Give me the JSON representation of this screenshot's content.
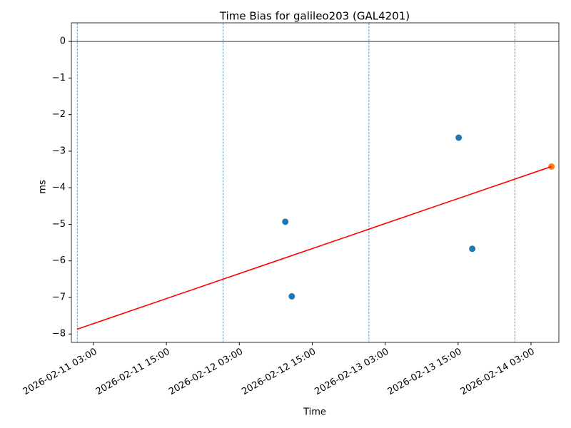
{
  "chart_data": {
    "type": "scatter",
    "title": "Time Bias for galileo203 (GAL4201)",
    "x_label": "Time",
    "y_label": "ms",
    "series": [
      {
        "type": "scatter",
        "color": "#1f77b4",
        "x": [
          "2026-02-12 10:34",
          "2026-02-12 11:38",
          "2026-02-13 15:06",
          "2026-02-13 17:20"
        ],
        "values": [
          -4.93,
          -6.97,
          -2.63,
          -5.67
        ]
      },
      {
        "type": "scatter",
        "color": "#ff7f0e",
        "x": [
          "2026-02-14 06:22"
        ],
        "values": [
          -3.42
        ]
      },
      {
        "type": "line",
        "color": "#ff0000",
        "x": [
          "2026-02-11 00:18",
          "2026-02-14 06:22"
        ],
        "values": [
          -7.87,
          -3.42
        ]
      }
    ],
    "vlines": [
      "2026-02-11 00:20",
      "2026-02-12 00:20",
      "2026-02-13 00:20",
      "2026-02-14 00:20"
    ],
    "vline_color": "#1f77b4",
    "hline": 0,
    "xlim": [
      "2026-02-10 23:22",
      "2026-02-14 07:35"
    ],
    "xticks": [
      "2026-02-11 03:00",
      "2026-02-11 15:00",
      "2026-02-12 03:00",
      "2026-02-12 15:00",
      "2026-02-13 03:00",
      "2026-02-13 15:00",
      "2026-02-14 03:00"
    ],
    "ylim": [
      -8.23,
      0.51
    ],
    "yticks": [
      {
        "value": 0,
        "label": "0"
      },
      {
        "value": -1,
        "label": "−1"
      },
      {
        "value": -2,
        "label": "−2"
      },
      {
        "value": -3,
        "label": "−3"
      },
      {
        "value": -4,
        "label": "−4"
      },
      {
        "value": -5,
        "label": "−5"
      },
      {
        "value": -6,
        "label": "−6"
      },
      {
        "value": -7,
        "label": "−7"
      },
      {
        "value": -8,
        "label": "−8"
      }
    ]
  }
}
